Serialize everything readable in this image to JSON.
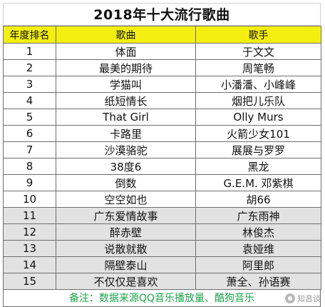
{
  "title": "2018年十大流行歌曲",
  "headers": {
    "rank": "年度排名",
    "song": "歌曲",
    "artist": "歌手"
  },
  "rows": [
    {
      "rank": "1",
      "song": "体面",
      "artist": "于文文",
      "shade": "white"
    },
    {
      "rank": "2",
      "song": "最美的期待",
      "artist": "周笔畅",
      "shade": "white"
    },
    {
      "rank": "3",
      "song": "学猫叫",
      "artist": "小潘潘、小峰峰",
      "shade": "white"
    },
    {
      "rank": "4",
      "song": "纸短情长",
      "artist": "烟把儿乐队",
      "shade": "white"
    },
    {
      "rank": "5",
      "song": "That Girl",
      "artist": "Olly Murs",
      "shade": "white"
    },
    {
      "rank": "6",
      "song": "卡路里",
      "artist": "火箭少女101",
      "shade": "white"
    },
    {
      "rank": "7",
      "song": "沙漠骆驼",
      "artist": "展展与罗罗",
      "shade": "white"
    },
    {
      "rank": "8",
      "song": "38度6",
      "artist": "黑龙",
      "shade": "white"
    },
    {
      "rank": "9",
      "song": "倒数",
      "artist": "G.E.M. 邓紫棋",
      "shade": "white"
    },
    {
      "rank": "10",
      "song": "空空如也",
      "artist": "胡66",
      "shade": "white"
    },
    {
      "rank": "11",
      "song": "广东爱情故事",
      "artist": "广东雨神",
      "shade": "gray"
    },
    {
      "rank": "12",
      "song": "醉赤壁",
      "artist": "林俊杰",
      "shade": "gray"
    },
    {
      "rank": "13",
      "song": "说散就散",
      "artist": "袁娅维",
      "shade": "gray"
    },
    {
      "rank": "14",
      "song": "隔壁泰山",
      "artist": "阿里郎",
      "shade": "gray"
    },
    {
      "rank": "15",
      "song": "不仅仅是喜欢",
      "artist": "萧全、孙语赛",
      "shade": "gray"
    }
  ],
  "footer_note": "备注：数据来源QQ音乐播放量、酷狗音乐",
  "watermark": {
    "text": "知音谈",
    "icon": "zhihu-logo-icon"
  },
  "colors": {
    "header_bg": "#f4ef10",
    "gray_row_bg": "#e2e2e2",
    "footer_text": "#1aa34a"
  }
}
